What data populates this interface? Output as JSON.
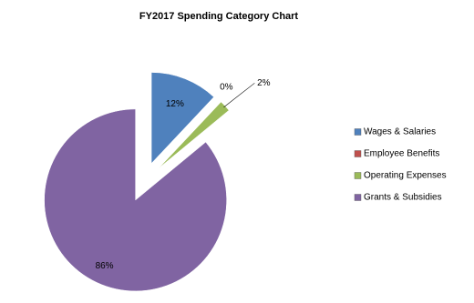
{
  "chart_data": {
    "type": "pie",
    "title": "FY2017 Spending Category Chart",
    "categories": [
      "Wages & Salaries",
      "Employee Benefits",
      "Operating Expenses",
      "Grants & Subsidies"
    ],
    "values": [
      12,
      0,
      2,
      86
    ],
    "value_labels": [
      "12%",
      "0%",
      "2%",
      "86%"
    ],
    "colors": [
      "#4f81bd",
      "#c0504d",
      "#9bbb59",
      "#8064a2"
    ],
    "legend": "right"
  }
}
